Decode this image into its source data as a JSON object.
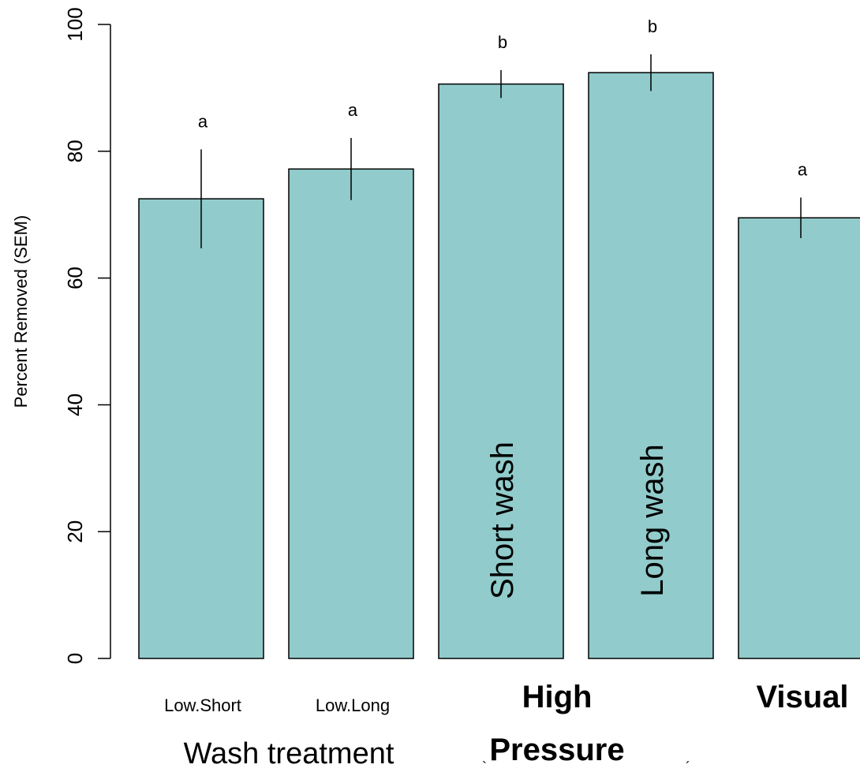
{
  "chart_data": {
    "type": "bar",
    "categories": [
      "Low.Short",
      "Low.Long",
      "",
      "",
      ""
    ],
    "values": [
      72.5,
      77.2,
      90.6,
      92.4,
      69.5
    ],
    "sem": [
      7.8,
      4.9,
      2.2,
      2.9,
      3.2
    ],
    "significance": [
      "a",
      "a",
      "b",
      "b",
      "a"
    ],
    "in_bar_labels": [
      "",
      "",
      "Short wash",
      "Long wash",
      ""
    ],
    "group_labels": [
      {
        "text": [
          "High",
          "Pressure"
        ],
        "bars": [
          2,
          3
        ]
      },
      {
        "text": [
          "Visual"
        ],
        "bars": [
          4
        ]
      }
    ],
    "bar_color": "#91cbcb",
    "xlabel": "Wash treatment",
    "ylabel": "Percent Removed (SEM)",
    "ylim": [
      0,
      100
    ],
    "yticks": [
      0,
      20,
      40,
      60,
      80,
      100
    ],
    "stray_marks": [
      "`",
      "´"
    ],
    "grid": false
  }
}
